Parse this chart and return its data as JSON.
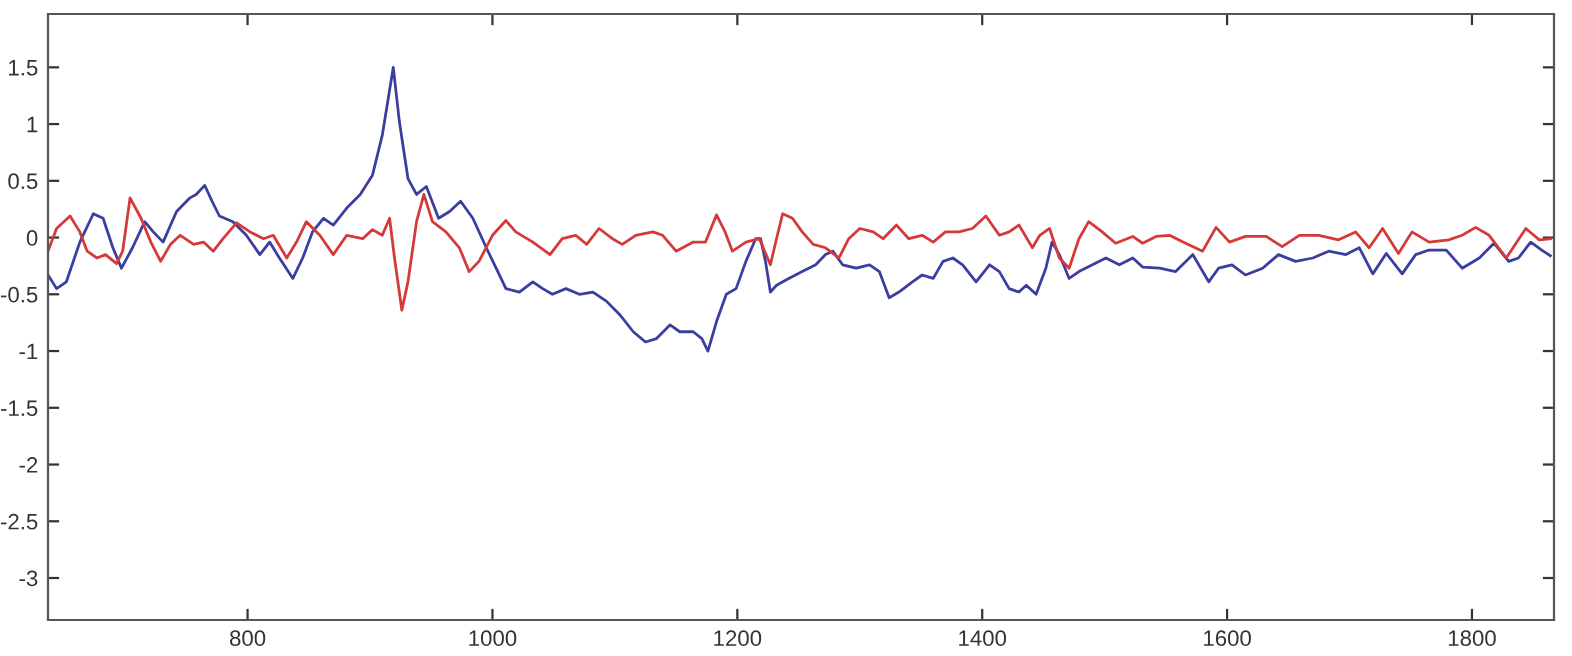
{
  "chart_data": {
    "type": "line",
    "xlim": [
      637,
      1867
    ],
    "ylim": [
      -3.37,
      1.97
    ],
    "xticks": [
      800,
      1000,
      1200,
      1400,
      1600,
      1800
    ],
    "yticks": [
      1.5,
      1,
      0.5,
      0,
      -0.5,
      -1,
      -1.5,
      -2,
      -2.5,
      -3
    ],
    "grid": false,
    "marker": "none",
    "line_style": "solid",
    "series": [
      {
        "color": "#3a3ea0",
        "x": [
          637,
          644,
          652,
          663,
          674,
          682,
          690,
          697,
          706,
          716,
          723,
          731,
          742,
          753,
          758,
          765,
          771,
          777,
          788,
          799,
          810,
          818,
          826,
          837,
          845,
          853,
          862,
          870,
          881,
          892,
          902,
          910,
          919,
          924,
          931,
          938,
          946,
          956,
          965,
          974,
          984,
          995,
          1003,
          1011,
          1022,
          1033,
          1041,
          1049,
          1060,
          1071,
          1082,
          1093,
          1104,
          1115,
          1125,
          1134,
          1145,
          1153,
          1164,
          1171,
          1176,
          1183,
          1191,
          1199,
          1207,
          1215,
          1219,
          1223,
          1227,
          1232,
          1242,
          1253,
          1264,
          1272,
          1278,
          1286,
          1297,
          1308,
          1316,
          1324,
          1332,
          1343,
          1351,
          1360,
          1368,
          1376,
          1384,
          1395,
          1406,
          1414,
          1422,
          1430,
          1436,
          1444,
          1452,
          1457,
          1463,
          1471,
          1479,
          1490,
          1501,
          1512,
          1523,
          1531,
          1545,
          1558,
          1572,
          1585,
          1593,
          1604,
          1615,
          1629,
          1642,
          1656,
          1670,
          1683,
          1697,
          1708,
          1719,
          1730,
          1743,
          1754,
          1765,
          1779,
          1792,
          1806,
          1818,
          1830,
          1838,
          1848,
          1857,
          1864
        ],
        "values": [
          -0.33,
          -0.45,
          -0.39,
          -0.04,
          0.21,
          0.17,
          -0.09,
          -0.27,
          -0.09,
          0.14,
          0.05,
          -0.04,
          0.23,
          0.35,
          0.38,
          0.46,
          0.32,
          0.19,
          0.14,
          0.02,
          -0.15,
          -0.04,
          -0.18,
          -0.36,
          -0.18,
          0.05,
          0.17,
          0.11,
          0.26,
          0.38,
          0.55,
          0.9,
          1.5,
          1.02,
          0.52,
          0.38,
          0.45,
          0.17,
          0.23,
          0.32,
          0.17,
          -0.09,
          -0.27,
          -0.45,
          -0.48,
          -0.39,
          -0.45,
          -0.5,
          -0.45,
          -0.5,
          -0.48,
          -0.56,
          -0.68,
          -0.83,
          -0.92,
          -0.89,
          -0.77,
          -0.83,
          -0.83,
          -0.89,
          -1.0,
          -0.74,
          -0.5,
          -0.45,
          -0.21,
          -0.01,
          -0.01,
          -0.21,
          -0.48,
          -0.42,
          -0.36,
          -0.3,
          -0.24,
          -0.15,
          -0.12,
          -0.24,
          -0.27,
          -0.24,
          -0.3,
          -0.53,
          -0.48,
          -0.39,
          -0.33,
          -0.36,
          -0.21,
          -0.18,
          -0.24,
          -0.39,
          -0.24,
          -0.3,
          -0.45,
          -0.48,
          -0.42,
          -0.5,
          -0.27,
          -0.04,
          -0.15,
          -0.36,
          -0.3,
          -0.24,
          -0.18,
          -0.24,
          -0.18,
          -0.26,
          -0.27,
          -0.3,
          -0.15,
          -0.39,
          -0.27,
          -0.24,
          -0.33,
          -0.27,
          -0.15,
          -0.21,
          -0.18,
          -0.12,
          -0.15,
          -0.09,
          -0.32,
          -0.14,
          -0.32,
          -0.15,
          -0.11,
          -0.11,
          -0.27,
          -0.18,
          -0.05,
          -0.21,
          -0.18,
          -0.04,
          -0.11,
          -0.16
        ]
      },
      {
        "color": "#d43a3a",
        "x": [
          637,
          644,
          655,
          663,
          669,
          677,
          684,
          693,
          698,
          704,
          713,
          721,
          729,
          737,
          745,
          756,
          764,
          772,
          780,
          791,
          802,
          813,
          821,
          832,
          840,
          848,
          859,
          870,
          881,
          894,
          902,
          910,
          916,
          920,
          926,
          931,
          938,
          944,
          951,
          962,
          973,
          981,
          989,
          1000,
          1011,
          1019,
          1033,
          1047,
          1057,
          1068,
          1077,
          1087,
          1098,
          1106,
          1117,
          1131,
          1139,
          1150,
          1164,
          1174,
          1183,
          1190,
          1196,
          1207,
          1218,
          1227,
          1232,
          1237,
          1245,
          1253,
          1262,
          1272,
          1283,
          1291,
          1300,
          1311,
          1319,
          1330,
          1340,
          1351,
          1360,
          1370,
          1381,
          1392,
          1403,
          1414,
          1422,
          1430,
          1441,
          1447,
          1455,
          1463,
          1471,
          1479,
          1487,
          1498,
          1509,
          1523,
          1531,
          1542,
          1553,
          1564,
          1580,
          1591,
          1602,
          1615,
          1632,
          1645,
          1659,
          1675,
          1691,
          1705,
          1716,
          1727,
          1740,
          1751,
          1765,
          1781,
          1792,
          1803,
          1814,
          1828,
          1844,
          1855,
          1864
        ],
        "values": [
          -0.12,
          0.08,
          0.19,
          0.05,
          -0.12,
          -0.18,
          -0.15,
          -0.23,
          -0.12,
          0.35,
          0.17,
          -0.04,
          -0.21,
          -0.06,
          0.02,
          -0.06,
          -0.04,
          -0.12,
          -0.01,
          0.13,
          0.05,
          -0.01,
          0.02,
          -0.18,
          -0.04,
          0.14,
          0.02,
          -0.15,
          0.02,
          -0.01,
          0.07,
          0.02,
          0.17,
          -0.18,
          -0.64,
          -0.39,
          0.14,
          0.38,
          0.14,
          0.05,
          -0.09,
          -0.3,
          -0.21,
          0.02,
          0.15,
          0.05,
          -0.04,
          -0.15,
          -0.01,
          0.02,
          -0.06,
          0.08,
          -0.01,
          -0.06,
          0.02,
          0.05,
          0.02,
          -0.12,
          -0.04,
          -0.04,
          0.2,
          0.05,
          -0.12,
          -0.04,
          -0.01,
          -0.24,
          -0.01,
          0.21,
          0.17,
          0.05,
          -0.06,
          -0.09,
          -0.18,
          -0.01,
          0.08,
          0.05,
          -0.01,
          0.11,
          -0.01,
          0.02,
          -0.04,
          0.05,
          0.05,
          0.08,
          0.19,
          0.02,
          0.05,
          0.11,
          -0.09,
          0.02,
          0.08,
          -0.18,
          -0.27,
          -0.01,
          0.14,
          0.05,
          -0.05,
          0.01,
          -0.05,
          0.01,
          0.02,
          -0.04,
          -0.12,
          0.09,
          -0.04,
          0.01,
          0.01,
          -0.08,
          0.02,
          0.02,
          -0.02,
          0.05,
          -0.09,
          0.08,
          -0.14,
          0.05,
          -0.04,
          -0.02,
          0.02,
          0.09,
          0.02,
          -0.18,
          0.08,
          -0.02,
          -0.01
        ]
      }
    ]
  }
}
